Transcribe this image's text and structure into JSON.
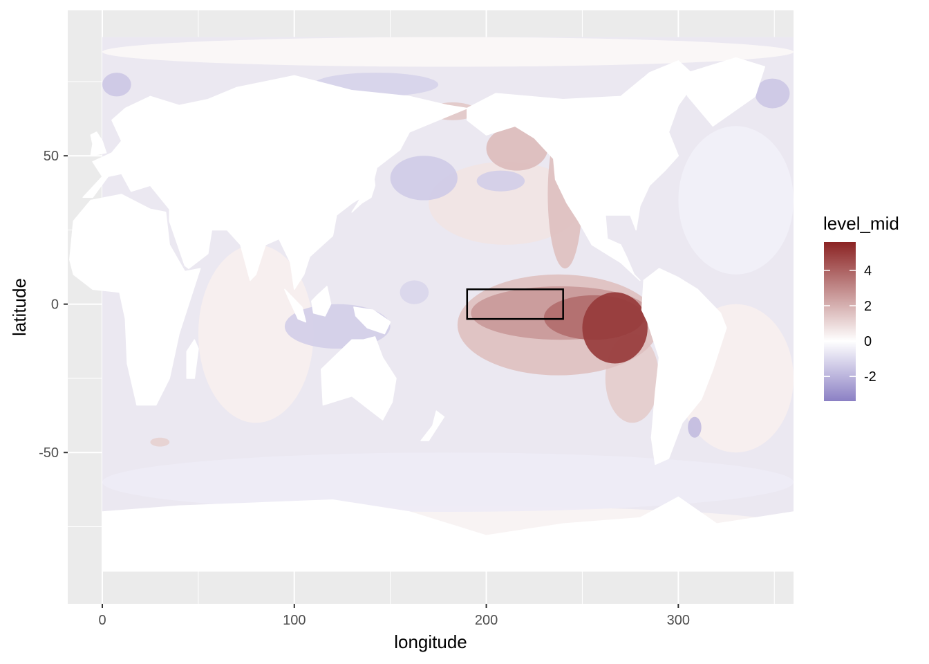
{
  "chart_data": {
    "type": "heatmap",
    "title": "",
    "xlabel": "longitude",
    "ylabel": "latitude",
    "xlim": [
      -18,
      360
    ],
    "ylim": [
      -101,
      99
    ],
    "x_ticks": [
      0,
      100,
      200,
      300
    ],
    "x_tick_labels": [
      "0",
      "100",
      "200",
      "300"
    ],
    "y_ticks": [
      -50,
      0,
      50
    ],
    "y_tick_labels": [
      "-50",
      "0",
      "50"
    ],
    "grid": true,
    "fill_variable": "level_mid",
    "legend": {
      "title": "level_mid",
      "position": "right",
      "range": [
        -3.4,
        5.6
      ],
      "breaks": [
        4,
        2,
        0,
        -2
      ],
      "break_labels": [
        "4",
        "2",
        "0",
        "-2"
      ],
      "low_color": "#8b80c4",
      "mid_color": "#ffffff",
      "high_color": "#8b2323"
    },
    "highlight_box": {
      "lon": [
        190,
        240
      ],
      "lat": [
        -5,
        5
      ],
      "stroke": "#000000"
    },
    "field_extent": {
      "lon": [
        0,
        360
      ],
      "lat": [
        -90,
        90
      ]
    },
    "anomaly_regions": [
      {
        "name": "eastern-pacific-core",
        "lon": [
          250,
          284
        ],
        "lat": [
          -20,
          4
        ],
        "level": 5.0
      },
      {
        "name": "eastern-pacific-inner",
        "lon": [
          230,
          282
        ],
        "lat": [
          -12,
          3
        ],
        "level": 3.7
      },
      {
        "name": "equatorial-tongue",
        "lon": [
          192,
          285
        ],
        "lat": [
          -12,
          6
        ],
        "level": 2.6
      },
      {
        "name": "equatorial-outer",
        "lon": [
          185,
          290
        ],
        "lat": [
          -24,
          10
        ],
        "level": 1.6
      },
      {
        "name": "peru-coast",
        "lon": [
          262,
          290
        ],
        "lat": [
          -40,
          -10
        ],
        "level": 1.3
      },
      {
        "name": "north-pacific-east",
        "lon": [
          232,
          250
        ],
        "lat": [
          12,
          62
        ],
        "level": 1.6
      },
      {
        "name": "gulf-of-alaska",
        "lon": [
          200,
          232
        ],
        "lat": [
          45,
          60
        ],
        "level": 1.7
      },
      {
        "name": "north-pacific-band",
        "lon": [
          170,
          250
        ],
        "lat": [
          20,
          48
        ],
        "level": 0.7
      },
      {
        "name": "kamchatka",
        "lon": [
          170,
          195
        ],
        "lat": [
          62,
          68
        ],
        "level": 1.4
      },
      {
        "name": "labrador",
        "lon": [
          265,
          285
        ],
        "lat": [
          57,
          63
        ],
        "level": 1.4
      },
      {
        "name": "southern-patch",
        "lon": [
          25,
          35
        ],
        "lat": [
          -48,
          -45
        ],
        "level": 1.2
      },
      {
        "name": "south-atlantic",
        "lon": [
          300,
          360
        ],
        "lat": [
          -50,
          0
        ],
        "level": 0.4
      },
      {
        "name": "indian-ocean",
        "lon": [
          50,
          110
        ],
        "lat": [
          -40,
          20
        ],
        "level": 0.4
      },
      {
        "name": "north-atlantic",
        "lon": [
          300,
          360
        ],
        "lat": [
          10,
          60
        ],
        "level": -0.4
      },
      {
        "name": "central-pacific-north",
        "lon": [
          150,
          185
        ],
        "lat": [
          35,
          50
        ],
        "level": -1.4
      },
      {
        "name": "north-pacific-west",
        "lon": [
          195,
          220
        ],
        "lat": [
          38,
          45
        ],
        "level": -1.3
      },
      {
        "name": "warm-pool-west",
        "lon": [
          155,
          170
        ],
        "lat": [
          0,
          8
        ],
        "level": -1.1
      },
      {
        "name": "indonesia",
        "lon": [
          95,
          150
        ],
        "lat": [
          -15,
          0
        ],
        "level": -1.3
      },
      {
        "name": "caspian",
        "lon": [
          25,
          60
        ],
        "lat": [
          35,
          48
        ],
        "level": -1.9
      },
      {
        "name": "southern-ocean",
        "lon": [
          0,
          360
        ],
        "lat": [
          -70,
          -50
        ],
        "level": -0.5
      },
      {
        "name": "argentina",
        "lon": [
          305,
          312
        ],
        "lat": [
          -45,
          -38
        ],
        "level": -1.8
      },
      {
        "name": "arctic-norway",
        "lon": [
          0,
          15
        ],
        "lat": [
          70,
          78
        ],
        "level": -1.5
      },
      {
        "name": "arctic-siberia",
        "lon": [
          110,
          175
        ],
        "lat": [
          70,
          78
        ],
        "level": -1.2
      },
      {
        "name": "arctic-canada",
        "lon": [
          280,
          295
        ],
        "lat": [
          70,
          78
        ],
        "level": -1.1
      },
      {
        "name": "baffin",
        "lon": [
          340,
          358
        ],
        "lat": [
          66,
          76
        ],
        "level": -1.5
      },
      {
        "name": "antarctic-ring",
        "lon": [
          0,
          360
        ],
        "lat": [
          -82,
          -68
        ],
        "level": 0.3
      },
      {
        "name": "arctic-ring",
        "lon": [
          0,
          360
        ],
        "lat": [
          80,
          90
        ],
        "level": 0.2
      }
    ],
    "land_masses": [
      {
        "name": "eurasia",
        "points": [
          [
            -10,
            36
          ],
          [
            0,
            43
          ],
          [
            -5,
            48
          ],
          [
            5,
            51
          ],
          [
            10,
            55
          ],
          [
            5,
            62
          ],
          [
            12,
            66
          ],
          [
            25,
            70
          ],
          [
            40,
            67
          ],
          [
            55,
            69
          ],
          [
            70,
            73
          ],
          [
            100,
            77
          ],
          [
            130,
            72
          ],
          [
            160,
            70
          ],
          [
            180,
            67
          ],
          [
            190,
            66
          ],
          [
            175,
            62
          ],
          [
            160,
            58
          ],
          [
            155,
            52
          ],
          [
            143,
            46
          ],
          [
            140,
            38
          ],
          [
            130,
            34
          ],
          [
            122,
            30
          ],
          [
            120,
            23
          ],
          [
            108,
            16
          ],
          [
            105,
            10
          ],
          [
            100,
            5
          ],
          [
            98,
            14
          ],
          [
            92,
            22
          ],
          [
            85,
            20
          ],
          [
            80,
            10
          ],
          [
            77,
            8
          ],
          [
            72,
            20
          ],
          [
            65,
            25
          ],
          [
            57,
            25
          ],
          [
            55,
            17
          ],
          [
            45,
            12
          ],
          [
            43,
            13
          ],
          [
            35,
            28
          ],
          [
            35,
            32
          ],
          [
            30,
            36
          ],
          [
            25,
            40
          ],
          [
            15,
            38
          ],
          [
            10,
            44
          ],
          [
            3,
            43
          ],
          [
            -5,
            36
          ]
        ]
      },
      {
        "name": "africa",
        "points": [
          [
            -17,
            15
          ],
          [
            -15,
            28
          ],
          [
            -6,
            35
          ],
          [
            10,
            37
          ],
          [
            25,
            32
          ],
          [
            33,
            31
          ],
          [
            35,
            20
          ],
          [
            43,
            11
          ],
          [
            51,
            12
          ],
          [
            45,
            0
          ],
          [
            40,
            -10
          ],
          [
            35,
            -25
          ],
          [
            28,
            -34
          ],
          [
            18,
            -34
          ],
          [
            13,
            -20
          ],
          [
            12,
            -5
          ],
          [
            9,
            4
          ],
          [
            -5,
            5
          ],
          [
            -15,
            10
          ]
        ]
      },
      {
        "name": "north-america",
        "points": [
          [
            190,
            66
          ],
          [
            205,
            71
          ],
          [
            240,
            69
          ],
          [
            270,
            70
          ],
          [
            285,
            78
          ],
          [
            300,
            82
          ],
          [
            310,
            76
          ],
          [
            300,
            67
          ],
          [
            295,
            58
          ],
          [
            300,
            50
          ],
          [
            293,
            45
          ],
          [
            285,
            40
          ],
          [
            280,
            33
          ],
          [
            278,
            25
          ],
          [
            275,
            30
          ],
          [
            262,
            30
          ],
          [
            263,
            22
          ],
          [
            270,
            20
          ],
          [
            273,
            16
          ],
          [
            277,
            10
          ],
          [
            280,
            8
          ],
          [
            270,
            14
          ],
          [
            265,
            16
          ],
          [
            255,
            20
          ],
          [
            248,
            28
          ],
          [
            242,
            34
          ],
          [
            236,
            42
          ],
          [
            235,
            49
          ],
          [
            225,
            56
          ],
          [
            215,
            60
          ],
          [
            200,
            57
          ],
          [
            190,
            62
          ]
        ]
      },
      {
        "name": "greenland",
        "points": [
          [
            300,
            77
          ],
          [
            330,
            83
          ],
          [
            345,
            80
          ],
          [
            340,
            70
          ],
          [
            318,
            60
          ],
          [
            305,
            70
          ]
        ]
      },
      {
        "name": "south-america",
        "points": [
          [
            282,
            8
          ],
          [
            290,
            12
          ],
          [
            300,
            9
          ],
          [
            310,
            5
          ],
          [
            322,
            -3
          ],
          [
            325,
            -8
          ],
          [
            318,
            -22
          ],
          [
            312,
            -32
          ],
          [
            302,
            -40
          ],
          [
            295,
            -52
          ],
          [
            288,
            -54
          ],
          [
            286,
            -45
          ],
          [
            288,
            -30
          ],
          [
            290,
            -18
          ],
          [
            284,
            -6
          ],
          [
            281,
            -2
          ]
        ]
      },
      {
        "name": "australia",
        "points": [
          [
            114,
            -22
          ],
          [
            122,
            -17
          ],
          [
            130,
            -12
          ],
          [
            136,
            -12
          ],
          [
            142,
            -11
          ],
          [
            146,
            -18
          ],
          [
            153,
            -25
          ],
          [
            151,
            -33
          ],
          [
            146,
            -39
          ],
          [
            138,
            -35
          ],
          [
            130,
            -31
          ],
          [
            115,
            -34
          ]
        ]
      },
      {
        "name": "antarctica",
        "points": [
          [
            0,
            -70
          ],
          [
            40,
            -68
          ],
          [
            80,
            -67
          ],
          [
            120,
            -66
          ],
          [
            160,
            -70
          ],
          [
            200,
            -78
          ],
          [
            240,
            -74
          ],
          [
            280,
            -72
          ],
          [
            300,
            -65
          ],
          [
            320,
            -74
          ],
          [
            360,
            -70
          ],
          [
            360,
            -90
          ],
          [
            0,
            -90
          ]
        ]
      },
      {
        "name": "new-zealand",
        "points": [
          [
            166,
            -46
          ],
          [
            172,
            -41
          ],
          [
            174,
            -36
          ],
          [
            178,
            -38
          ],
          [
            174,
            -42
          ],
          [
            170,
            -46
          ]
        ]
      },
      {
        "name": "madagascar",
        "points": [
          [
            44,
            -25
          ],
          [
            48,
            -25
          ],
          [
            50,
            -15
          ],
          [
            48,
            -12
          ],
          [
            44,
            -16
          ]
        ]
      },
      {
        "name": "japan",
        "points": [
          [
            130,
            31
          ],
          [
            135,
            34
          ],
          [
            140,
            36
          ],
          [
            142,
            40
          ],
          [
            141,
            45
          ],
          [
            138,
            40
          ],
          [
            133,
            34
          ]
        ]
      },
      {
        "name": "british-isles",
        "points": [
          [
            -6,
            50
          ],
          [
            2,
            51
          ],
          [
            0,
            55
          ],
          [
            -3,
            58
          ],
          [
            -6,
            57
          ],
          [
            -5,
            54
          ]
        ]
      },
      {
        "name": "indonesia-borneo",
        "points": [
          [
            109,
            1
          ],
          [
            112,
            3
          ],
          [
            117,
            6
          ],
          [
            119,
            0
          ],
          [
            116,
            -4
          ],
          [
            110,
            -3
          ]
        ]
      },
      {
        "name": "sumatra",
        "points": [
          [
            95,
            5
          ],
          [
            104,
            -1
          ],
          [
            106,
            -6
          ],
          [
            102,
            -5
          ],
          [
            97,
            2
          ]
        ]
      },
      {
        "name": "new-guinea",
        "points": [
          [
            131,
            -1
          ],
          [
            141,
            -2
          ],
          [
            150,
            -6
          ],
          [
            147,
            -10
          ],
          [
            138,
            -8
          ],
          [
            132,
            -4
          ]
        ]
      }
    ]
  }
}
